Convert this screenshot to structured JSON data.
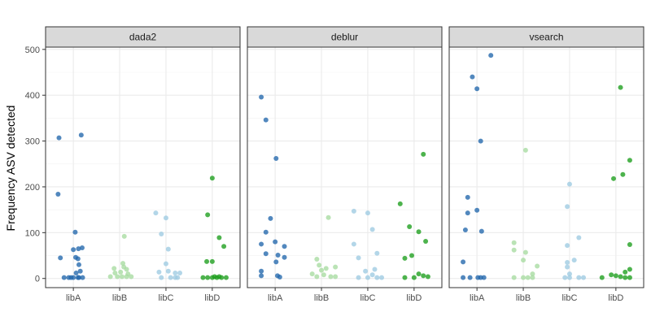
{
  "chart_data": {
    "type": "scatter",
    "ylabel": "Frequency ASV detected",
    "xlabel": "",
    "categories": [
      "libA",
      "libB",
      "libC",
      "libD"
    ],
    "ylim": [
      -20,
      505
    ],
    "yticks": [
      0,
      100,
      200,
      300,
      400,
      500
    ],
    "grid": true,
    "legend": "none",
    "colors": {
      "libA": "#2166ac",
      "libB": "#a6dba0",
      "libC": "#9ecae1",
      "libD": "#1b9e1b"
    },
    "panels": [
      {
        "title": "dada2",
        "points": {
          "libA": [
            [
              -0.31,
              307
            ],
            [
              0.17,
              313
            ],
            [
              -0.33,
              184
            ],
            [
              0.04,
              101
            ],
            [
              0.0,
              63
            ],
            [
              0.11,
              65
            ],
            [
              0.19,
              67
            ],
            [
              0.05,
              46
            ],
            [
              -0.28,
              45
            ],
            [
              0.1,
              43
            ],
            [
              0.12,
              30
            ],
            [
              0.06,
              12
            ],
            [
              0.15,
              16
            ],
            [
              -0.2,
              2
            ],
            [
              -0.1,
              2
            ],
            [
              -0.05,
              2
            ],
            [
              0.0,
              2
            ],
            [
              0.1,
              2
            ],
            [
              0.2,
              2
            ],
            [
              0.12,
              2
            ]
          ],
          "libB": [
            [
              0.1,
              92
            ],
            [
              -0.12,
              22
            ],
            [
              0.07,
              33
            ],
            [
              0.09,
              25
            ],
            [
              0.15,
              20
            ],
            [
              -0.1,
              12
            ],
            [
              0.02,
              14
            ],
            [
              0.18,
              10
            ],
            [
              -0.2,
              4
            ],
            [
              -0.05,
              4
            ],
            [
              0.05,
              4
            ],
            [
              0.15,
              4
            ],
            [
              0.25,
              4
            ]
          ],
          "libC": [
            [
              -0.22,
              143
            ],
            [
              0.0,
              132
            ],
            [
              -0.1,
              97
            ],
            [
              0.05,
              64
            ],
            [
              0.0,
              32
            ],
            [
              -0.15,
              14
            ],
            [
              0.05,
              16
            ],
            [
              0.2,
              12
            ],
            [
              0.3,
              12
            ],
            [
              -0.1,
              2
            ],
            [
              0.1,
              2
            ],
            [
              0.2,
              2
            ],
            [
              0.25,
              2
            ]
          ],
          "libD": [
            [
              0.0,
              219
            ],
            [
              -0.1,
              139
            ],
            [
              0.15,
              89
            ],
            [
              0.25,
              70
            ],
            [
              0.0,
              37
            ],
            [
              -0.12,
              37
            ],
            [
              -0.2,
              2
            ],
            [
              -0.1,
              2
            ],
            [
              0.0,
              2
            ],
            [
              0.1,
              2
            ],
            [
              0.2,
              2
            ],
            [
              0.3,
              2
            ],
            [
              0.05,
              4
            ],
            [
              0.15,
              4
            ]
          ]
        }
      },
      {
        "title": "deblur",
        "points": {
          "libA": [
            [
              -0.3,
              396
            ],
            [
              -0.2,
              346
            ],
            [
              0.02,
              262
            ],
            [
              -0.1,
              131
            ],
            [
              -0.2,
              101
            ],
            [
              0.0,
              80
            ],
            [
              -0.3,
              75
            ],
            [
              0.2,
              70
            ],
            [
              -0.2,
              54
            ],
            [
              0.06,
              51
            ],
            [
              0.2,
              46
            ],
            [
              0.02,
              36
            ],
            [
              -0.3,
              16
            ],
            [
              0.05,
              6
            ],
            [
              0.1,
              3
            ],
            [
              -0.3,
              6
            ]
          ],
          "libB": [
            [
              0.15,
              133
            ],
            [
              -0.1,
              42
            ],
            [
              -0.05,
              29
            ],
            [
              0.1,
              22
            ],
            [
              0.3,
              25
            ],
            [
              0.0,
              18
            ],
            [
              -0.2,
              10
            ],
            [
              0.05,
              8
            ],
            [
              0.2,
              4
            ],
            [
              -0.1,
              4
            ],
            [
              0.3,
              4
            ]
          ],
          "libC": [
            [
              -0.3,
              147
            ],
            [
              0.0,
              143
            ],
            [
              0.1,
              107
            ],
            [
              -0.3,
              75
            ],
            [
              0.2,
              55
            ],
            [
              -0.2,
              45
            ],
            [
              0.15,
              20
            ],
            [
              -0.05,
              16
            ],
            [
              0.1,
              8
            ],
            [
              -0.2,
              2
            ],
            [
              0.0,
              2
            ],
            [
              0.2,
              2
            ],
            [
              0.3,
              2
            ]
          ],
          "libD": [
            [
              -0.3,
              163
            ],
            [
              -0.1,
              113
            ],
            [
              0.2,
              271
            ],
            [
              0.1,
              102
            ],
            [
              0.25,
              81
            ],
            [
              -0.05,
              50
            ],
            [
              -0.2,
              44
            ],
            [
              0.1,
              10
            ],
            [
              0.2,
              6
            ],
            [
              -0.2,
              2
            ],
            [
              0.0,
              2
            ],
            [
              0.3,
              4
            ]
          ]
        }
      },
      {
        "title": "vsearch",
        "points": {
          "libA": [
            [
              0.3,
              487
            ],
            [
              -0.1,
              440
            ],
            [
              0.0,
              414
            ],
            [
              0.08,
              300
            ],
            [
              -0.2,
              177
            ],
            [
              -0.2,
              143
            ],
            [
              0.0,
              149
            ],
            [
              0.1,
              103
            ],
            [
              -0.25,
              106
            ],
            [
              -0.3,
              36
            ],
            [
              -0.3,
              2
            ],
            [
              -0.15,
              2
            ],
            [
              0.02,
              2
            ],
            [
              0.08,
              2
            ],
            [
              0.15,
              2
            ]
          ],
          "libB": [
            [
              0.05,
              280
            ],
            [
              -0.2,
              78
            ],
            [
              -0.2,
              62
            ],
            [
              0.05,
              57
            ],
            [
              0.0,
              40
            ],
            [
              0.3,
              27
            ],
            [
              0.2,
              10
            ],
            [
              -0.2,
              2
            ],
            [
              0.0,
              2
            ],
            [
              0.1,
              2
            ],
            [
              0.2,
              2
            ]
          ],
          "libC": [
            [
              0.0,
              206
            ],
            [
              -0.05,
              157
            ],
            [
              0.2,
              89
            ],
            [
              -0.05,
              72
            ],
            [
              0.1,
              40
            ],
            [
              -0.05,
              35
            ],
            [
              -0.05,
              25
            ],
            [
              0.0,
              10
            ],
            [
              -0.1,
              2
            ],
            [
              0.0,
              2
            ],
            [
              0.2,
              2
            ],
            [
              0.3,
              2
            ]
          ],
          "libD": [
            [
              0.1,
              417
            ],
            [
              0.3,
              258
            ],
            [
              0.15,
              227
            ],
            [
              -0.05,
              218
            ],
            [
              0.3,
              74
            ],
            [
              0.3,
              20
            ],
            [
              0.2,
              14
            ],
            [
              -0.1,
              8
            ],
            [
              0.0,
              6
            ],
            [
              0.1,
              4
            ],
            [
              -0.3,
              2
            ],
            [
              0.2,
              2
            ],
            [
              0.3,
              2
            ]
          ]
        }
      }
    ]
  }
}
